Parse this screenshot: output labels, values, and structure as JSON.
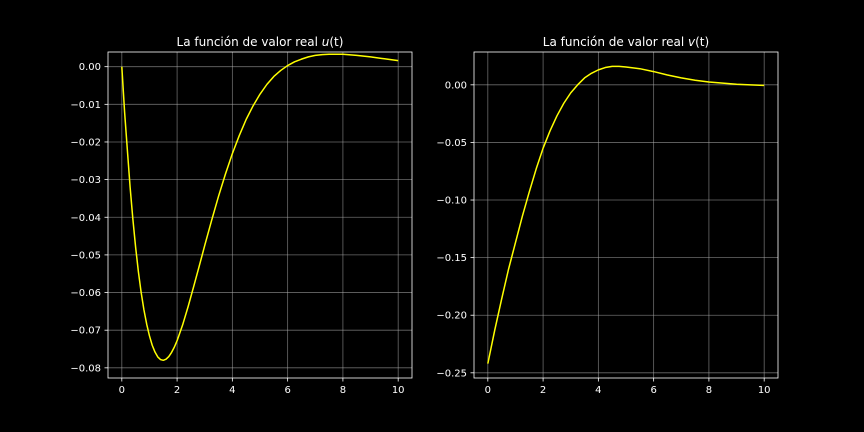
{
  "chart_data": [
    {
      "type": "line",
      "title_prefix": "La función de valor real ",
      "title_var": "u",
      "title_arg": "(t)",
      "xlabel": "",
      "ylabel": "",
      "xlim": [
        -0.5,
        10.5
      ],
      "ylim": [
        -0.0827,
        0.0039
      ],
      "grid": true,
      "x_ticks": [
        0,
        2,
        4,
        6,
        8,
        10
      ],
      "x_tick_labels": [
        "0",
        "2",
        "4",
        "6",
        "8",
        "10"
      ],
      "y_ticks": [
        0.0,
        -0.01,
        -0.02,
        -0.03,
        -0.04,
        -0.05,
        -0.06,
        -0.07,
        -0.08
      ],
      "y_tick_labels": [
        "0.00",
        "−0.01",
        "−0.02",
        "−0.03",
        "−0.04",
        "−0.05",
        "−0.06",
        "−0.07",
        "−0.08"
      ],
      "series": [
        {
          "color": "#ffff00",
          "x": [
            0,
            0.1,
            0.2,
            0.3,
            0.4,
            0.5,
            0.6,
            0.7,
            0.8,
            0.9,
            1.0,
            1.1,
            1.2,
            1.3,
            1.4,
            1.5,
            1.6,
            1.7,
            1.8,
            1.9,
            2.0,
            2.2,
            2.4,
            2.6,
            2.8,
            3.0,
            3.25,
            3.5,
            3.75,
            4.0,
            4.25,
            4.5,
            4.75,
            5.0,
            5.25,
            5.5,
            5.75,
            6.0,
            6.25,
            6.5,
            6.75,
            7.0,
            7.25,
            7.5,
            7.75,
            8.0,
            8.5,
            9.0,
            9.5,
            10.0
          ],
          "y": [
            0.0,
            -0.012,
            -0.0221,
            -0.032,
            -0.0405,
            -0.048,
            -0.0545,
            -0.06,
            -0.0646,
            -0.0684,
            -0.0715,
            -0.074,
            -0.0758,
            -0.0771,
            -0.0778,
            -0.078,
            -0.0777,
            -0.077,
            -0.0759,
            -0.0745,
            -0.0728,
            -0.0686,
            -0.0637,
            -0.0584,
            -0.053,
            -0.0475,
            -0.0408,
            -0.0344,
            -0.0285,
            -0.0231,
            -0.0183,
            -0.014,
            -0.0104,
            -0.0073,
            -0.0047,
            -0.0026,
            -0.001,
            0.0003,
            0.0013,
            0.002,
            0.0026,
            0.003,
            0.0032,
            0.0033,
            0.0033,
            0.0033,
            0.003,
            0.0026,
            0.0021,
            0.0016
          ]
        }
      ]
    },
    {
      "type": "line",
      "title_prefix": "La función de valor real ",
      "title_var": "v",
      "title_arg": "(t)",
      "xlabel": "",
      "ylabel": "",
      "xlim": [
        -0.5,
        10.5
      ],
      "ylim": [
        -0.2545,
        0.0285
      ],
      "grid": true,
      "x_ticks": [
        0,
        2,
        4,
        6,
        8,
        10
      ],
      "x_tick_labels": [
        "0",
        "2",
        "4",
        "6",
        "8",
        "10"
      ],
      "y_ticks": [
        0.0,
        -0.05,
        -0.1,
        -0.15,
        -0.2,
        -0.25
      ],
      "y_tick_labels": [
        "0.00",
        "−0.05",
        "−0.10",
        "−0.15",
        "−0.20",
        "−0.25"
      ],
      "series": [
        {
          "color": "#ffff00",
          "x": [
            0,
            0.25,
            0.5,
            0.75,
            1.0,
            1.25,
            1.5,
            1.75,
            2.0,
            2.25,
            2.5,
            2.75,
            3.0,
            3.25,
            3.5,
            3.75,
            4.0,
            4.25,
            4.5,
            4.75,
            5.0,
            5.5,
            6.0,
            6.5,
            7.0,
            7.5,
            8.0,
            8.5,
            9.0,
            9.5,
            10.0
          ],
          "y": [
            -0.242,
            -0.213,
            -0.186,
            -0.16,
            -0.137,
            -0.114,
            -0.093,
            -0.073,
            -0.055,
            -0.04,
            -0.027,
            -0.016,
            -0.007,
            0.0,
            0.006,
            0.01,
            0.013,
            0.015,
            0.016,
            0.016,
            0.0155,
            0.014,
            0.0115,
            0.0085,
            0.006,
            0.004,
            0.0025,
            0.0015,
            0.0005,
            0.0,
            -0.0005
          ]
        }
      ]
    }
  ]
}
